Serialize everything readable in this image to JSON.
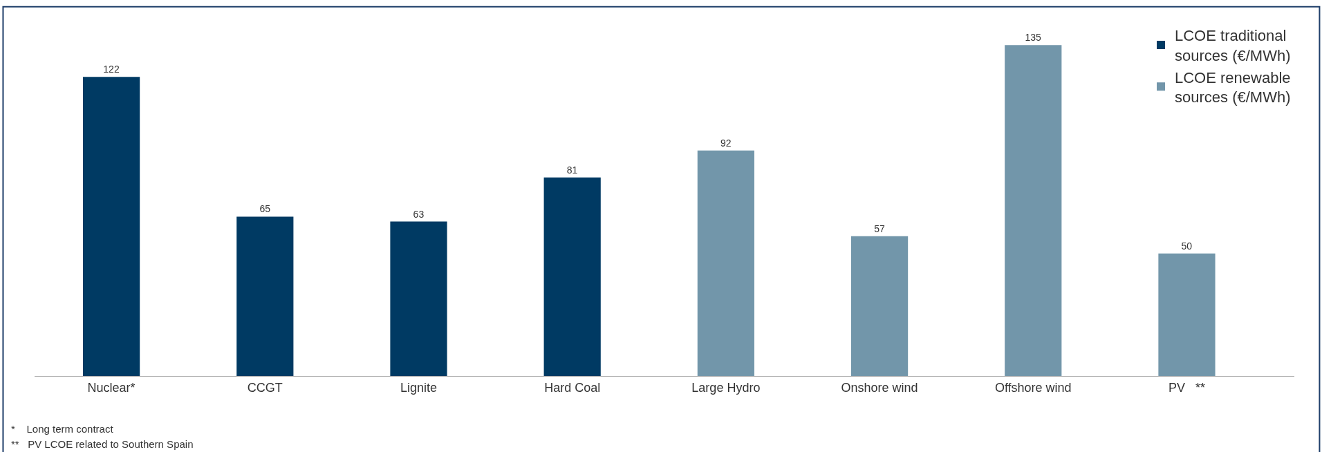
{
  "chart_data": {
    "type": "bar",
    "categories": [
      "Nuclear*",
      "CCGT",
      "Lignite",
      "Hard Coal",
      "Large Hydro",
      "Onshore wind",
      "Offshore wind",
      "PV   **"
    ],
    "series": [
      {
        "name": "LCOE traditional sources (€/MWh)",
        "color": "#003a63",
        "values": [
          122,
          65,
          63,
          81,
          null,
          null,
          null,
          null
        ]
      },
      {
        "name": "LCOE renewable sources (€/MWh)",
        "color": "#7296aa",
        "values": [
          null,
          null,
          null,
          null,
          92,
          57,
          135,
          50
        ]
      }
    ],
    "data_labels": true,
    "legend": "top right",
    "annotations": [
      "*    Long term contract",
      "**   PV LCOE related to Southern Spain"
    ]
  }
}
